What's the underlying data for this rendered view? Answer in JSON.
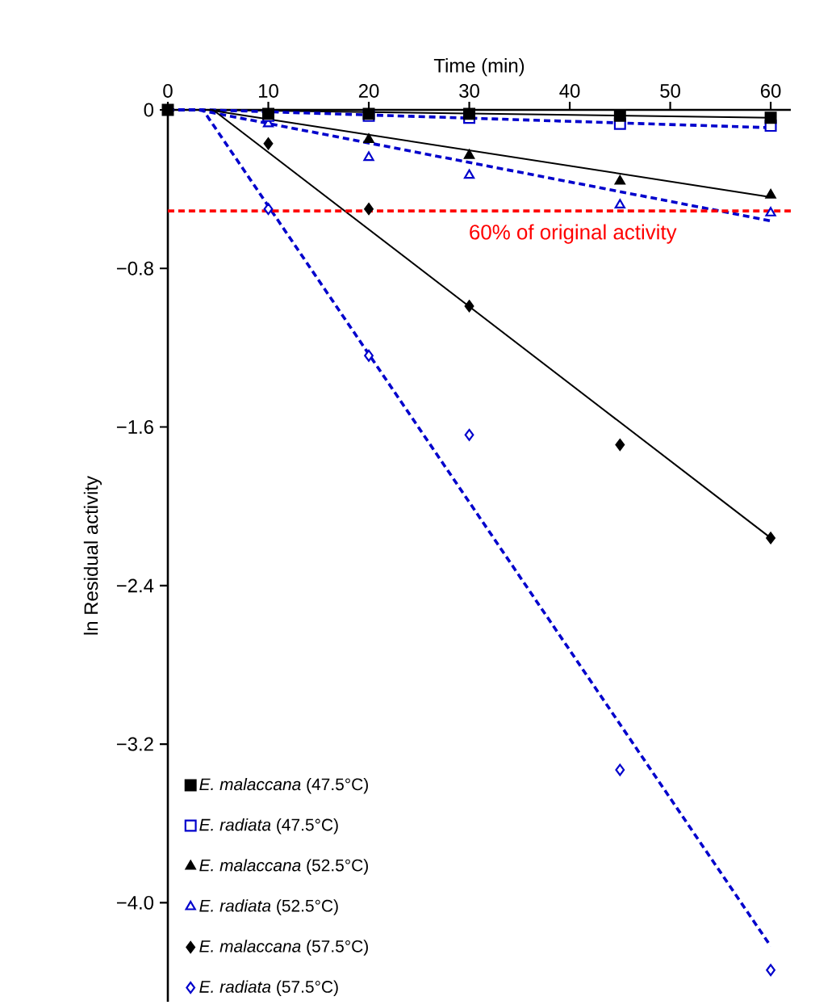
{
  "chart_data": {
    "type": "scatter",
    "xlabel": "Time (min)",
    "ylabel": "ln Residual activity",
    "x": [
      0,
      10,
      20,
      30,
      45,
      60
    ],
    "xlim": [
      0,
      62
    ],
    "xticks": [
      0,
      10,
      20,
      30,
      40,
      50,
      60
    ],
    "ylim": [
      -4.5,
      0
    ],
    "yticks": [
      0,
      {
        "value": -0.8,
        "label": "−0.8"
      },
      {
        "value": -1.6,
        "label": "−1.6"
      },
      {
        "value": -2.4,
        "label": "−2.4"
      },
      {
        "value": -3.2,
        "label": "−3.2"
      },
      {
        "value": -4.0,
        "label": "−4.0"
      }
    ],
    "grid": false,
    "legend": "bottom left",
    "series": [
      {
        "type": "line",
        "color": "#000000",
        "line_style": "solid",
        "x": [
          0,
          4,
          60
        ],
        "values": [
          0,
          0,
          -0.04
        ]
      },
      {
        "type": "line",
        "color": "#0000cc",
        "line_style": "dashed",
        "x": [
          0,
          4,
          60
        ],
        "values": [
          0,
          0,
          -0.09
        ]
      },
      {
        "type": "line",
        "color": "#000000",
        "line_style": "solid",
        "x": [
          0,
          4,
          60
        ],
        "values": [
          0,
          0,
          -0.44
        ]
      },
      {
        "type": "line",
        "color": "#0000cc",
        "line_style": "dashed",
        "x": [
          0,
          3,
          60
        ],
        "values": [
          0,
          0,
          -0.56
        ]
      },
      {
        "type": "line",
        "color": "#000000",
        "line_style": "solid",
        "x": [
          0,
          4.5,
          60
        ],
        "values": [
          0,
          0,
          -2.16
        ]
      },
      {
        "type": "line",
        "color": "#0000cc",
        "line_style": "dashed",
        "x": [
          0,
          3.5,
          60
        ],
        "values": [
          0,
          0,
          -4.22
        ]
      },
      {
        "name": "*E. malaccana* (47.5°C)",
        "color": "#000000",
        "marker": "square",
        "values": [
          0,
          -0.02,
          -0.02,
          -0.02,
          -0.03,
          -0.04
        ]
      },
      {
        "name": "*E. radiata* (47.5°C)",
        "color": "#0000cc",
        "marker": "square",
        "values": [
          null,
          -0.03,
          -0.03,
          -0.04,
          -0.07,
          -0.08
        ]
      },
      {
        "name": "*E. malaccana* (52.5°C)",
        "color": "#000000",
        "marker": "triangle",
        "values": [
          null,
          null,
          -0.15,
          -0.23,
          -0.36,
          -0.43
        ]
      },
      {
        "name": "*E. radiata* (52.5°C)",
        "color": "#0000cc",
        "marker": "triangle",
        "values": [
          null,
          -0.07,
          -0.24,
          -0.33,
          -0.48,
          -0.52
        ]
      },
      {
        "name": "*E. malaccana* (57.5°C)",
        "color": "#000000",
        "marker": "diamond",
        "values": [
          null,
          -0.17,
          -0.5,
          -0.99,
          -1.69,
          -2.16
        ]
      },
      {
        "name": "*E. radiata* (57.5°C)",
        "color": "#0000cc",
        "marker": "diamond",
        "values": [
          null,
          -0.5,
          -1.24,
          -1.64,
          -3.33,
          -4.34
        ]
      }
    ],
    "ref_lines": [
      {
        "axis": "y",
        "value": -0.51,
        "label": "60% of original activity",
        "color": "#ff0000",
        "line_style": "dashed"
      }
    ]
  }
}
